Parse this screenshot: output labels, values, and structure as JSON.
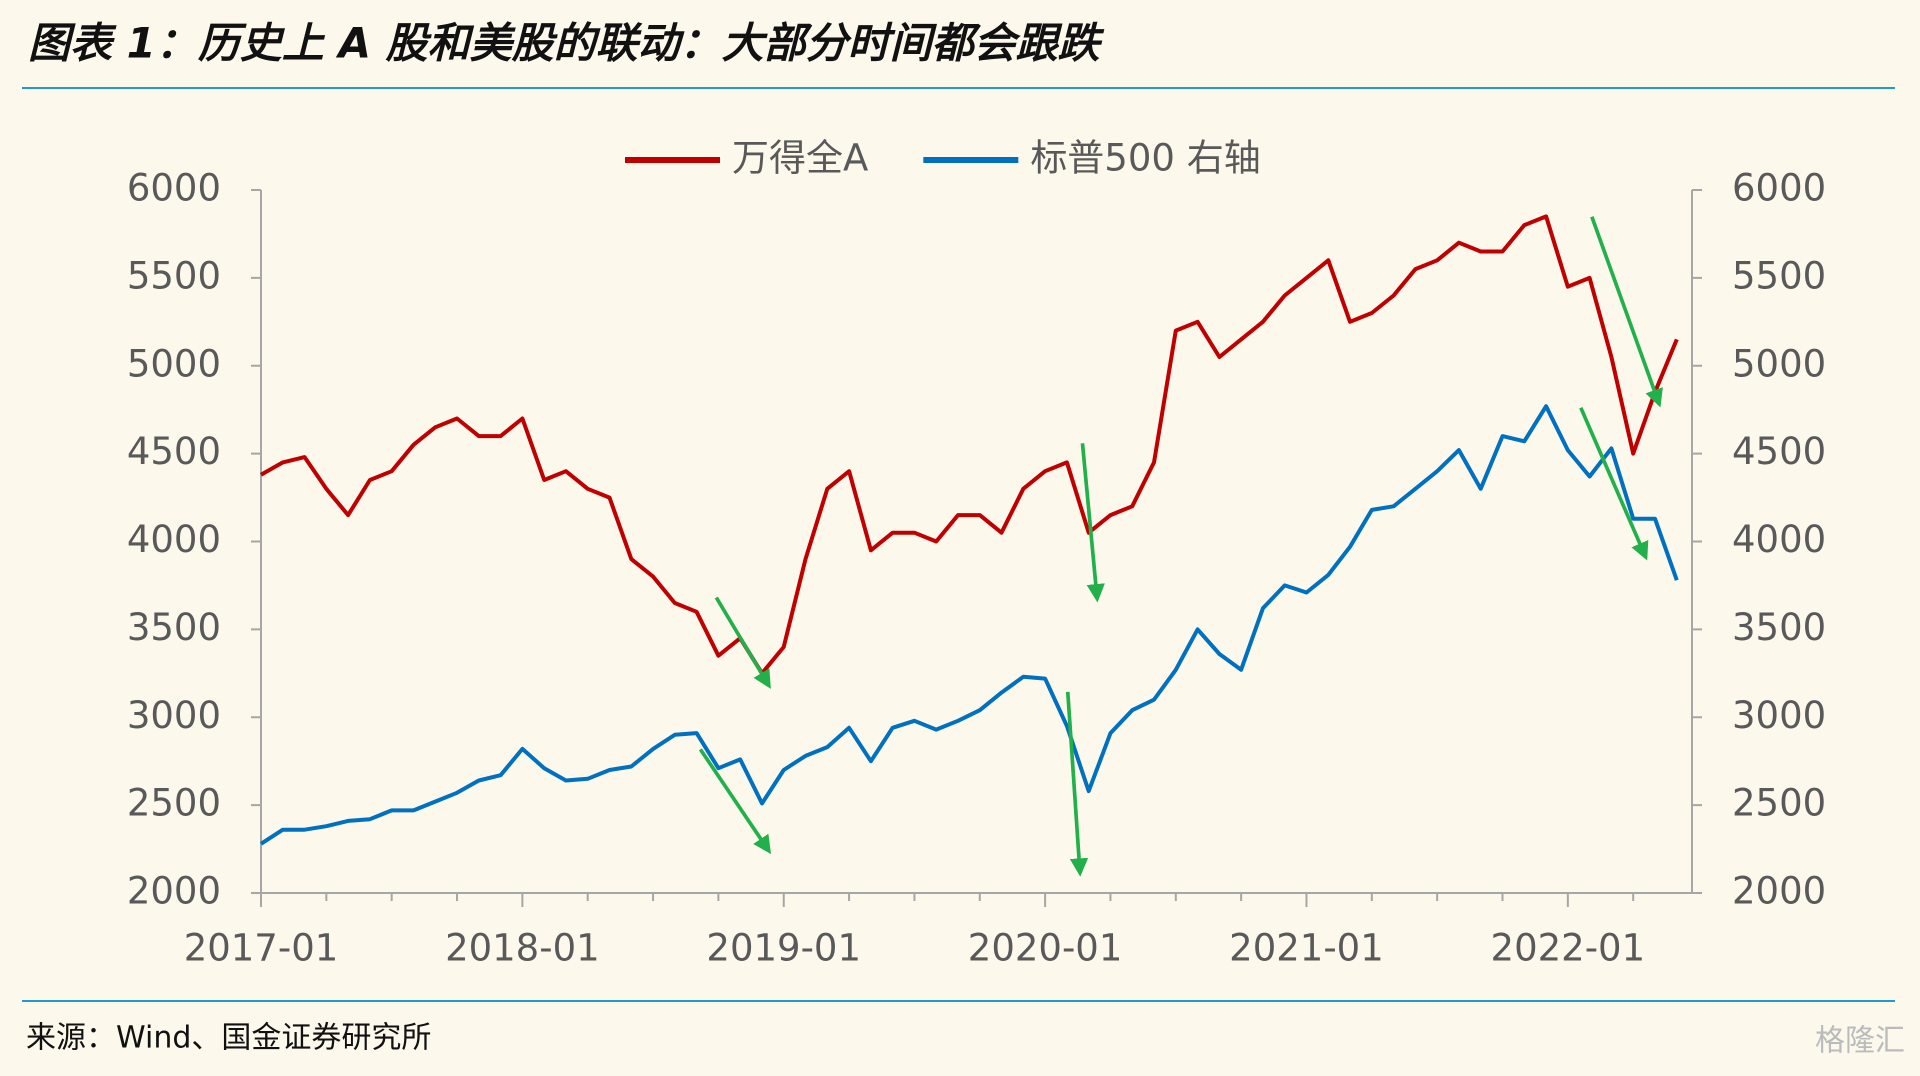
{
  "chart_data": {
    "type": "line",
    "title": "图表 1：历史上 A 股和美股的联动：大部分时间都会跟跌",
    "source": "来源：Wind、国金证券研究所",
    "watermark": "格隆汇",
    "x": [
      "2017-01",
      "2017-02",
      "2017-03",
      "2017-04",
      "2017-05",
      "2017-06",
      "2017-07",
      "2017-08",
      "2017-09",
      "2017-10",
      "2017-11",
      "2017-12",
      "2018-01",
      "2018-02",
      "2018-03",
      "2018-04",
      "2018-05",
      "2018-06",
      "2018-07",
      "2018-08",
      "2018-09",
      "2018-10",
      "2018-11",
      "2018-12",
      "2019-01",
      "2019-02",
      "2019-03",
      "2019-04",
      "2019-05",
      "2019-06",
      "2019-07",
      "2019-08",
      "2019-09",
      "2019-10",
      "2019-11",
      "2019-12",
      "2020-01",
      "2020-02",
      "2020-03",
      "2020-04",
      "2020-05",
      "2020-06",
      "2020-07",
      "2020-08",
      "2020-09",
      "2020-10",
      "2020-11",
      "2020-12",
      "2021-01",
      "2021-02",
      "2021-03",
      "2021-04",
      "2021-05",
      "2021-06",
      "2021-07",
      "2021-08",
      "2021-09",
      "2021-10",
      "2021-11",
      "2021-12",
      "2022-01",
      "2022-02",
      "2022-03",
      "2022-04",
      "2022-05",
      "2022-06"
    ],
    "series": [
      {
        "name": "万得全A",
        "color": "#c00000",
        "values": [
          4380,
          4450,
          4480,
          4300,
          4150,
          4350,
          4400,
          4550,
          4650,
          4700,
          4600,
          4600,
          4700,
          4350,
          4400,
          4300,
          4250,
          3900,
          3800,
          3650,
          3600,
          3350,
          3450,
          3250,
          3400,
          3900,
          4300,
          4400,
          3950,
          4050,
          4050,
          4000,
          4150,
          4150,
          4050,
          4300,
          4400,
          4450,
          4050,
          4150,
          4200,
          4450,
          5200,
          5250,
          5050,
          5150,
          5250,
          5400,
          5500,
          5600,
          5250,
          5300,
          5400,
          5550,
          5600,
          5700,
          5650,
          5650,
          5800,
          5850,
          5450,
          5500,
          5050,
          4500,
          4850,
          5150
        ]
      },
      {
        "name": "标普500 右轴",
        "color": "#0070c0",
        "axis": "y2",
        "values": [
          2280,
          2360,
          2360,
          2380,
          2410,
          2420,
          2470,
          2470,
          2520,
          2570,
          2640,
          2670,
          2820,
          2710,
          2640,
          2650,
          2700,
          2720,
          2820,
          2900,
          2910,
          2710,
          2760,
          2510,
          2700,
          2780,
          2830,
          2940,
          2750,
          2940,
          2980,
          2930,
          2980,
          3040,
          3140,
          3230,
          3220,
          2950,
          2580,
          2910,
          3040,
          3100,
          3270,
          3500,
          3360,
          3270,
          3620,
          3750,
          3710,
          3810,
          3970,
          4180,
          4200,
          4300,
          4400,
          4520,
          4300,
          4600,
          4570,
          4770,
          4520,
          4370,
          4530,
          4130,
          4130,
          3780
        ]
      }
    ],
    "ylim": [
      2000,
      6000
    ],
    "yticks": [
      2000,
      2500,
      3000,
      3500,
      4000,
      4500,
      5000,
      5500,
      6000
    ],
    "y2lim": [
      2000,
      6000
    ],
    "y2ticks": [
      2000,
      2500,
      3000,
      3500,
      4000,
      4500,
      5000,
      5500,
      6000
    ],
    "legend": "top"
  }
}
